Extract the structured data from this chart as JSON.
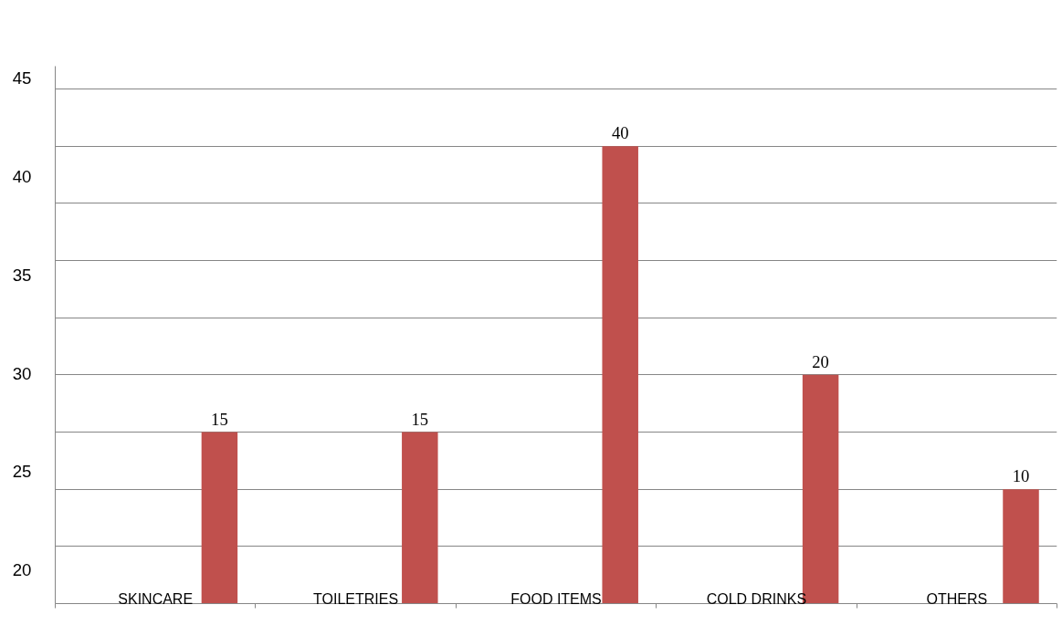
{
  "chart_data": {
    "type": "bar",
    "categories": [
      "SKINCARE",
      "TOILETRIES",
      "FOOD ITEMS",
      "COLD DRINKS",
      "OTHERS"
    ],
    "values": [
      15,
      15,
      40,
      20,
      10
    ],
    "color": "#c0504d",
    "data_labels": true,
    "ylim": [
      0,
      47
    ],
    "yticks": [
      {
        "value": 0,
        "label": null
      },
      {
        "value": 5,
        "label": null
      },
      {
        "value": 10,
        "label": null
      },
      {
        "value": 15,
        "label": null
      },
      {
        "value": 20,
        "label": null
      },
      {
        "value": 25,
        "label": null
      },
      {
        "value": 30,
        "label": null
      },
      {
        "value": 35,
        "label": null
      },
      {
        "value": 40,
        "label": null
      },
      {
        "value": 45,
        "label": null
      }
    ],
    "y2lim": [
      18.3,
      45.6
    ],
    "y2ticks": [
      20,
      25,
      30,
      35,
      40,
      45
    ],
    "grid": "y"
  }
}
